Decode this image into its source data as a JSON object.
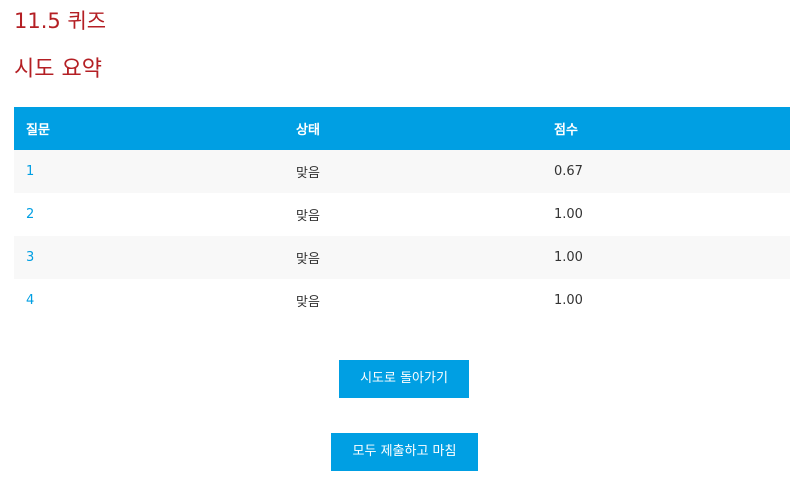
{
  "quiz": {
    "title": "11.5 퀴즈"
  },
  "summary": {
    "title": "시도 요약",
    "headers": {
      "question": "질문",
      "status": "상태",
      "score": "점수"
    },
    "rows": [
      {
        "question": "1",
        "status": "맞음",
        "score": "0.67"
      },
      {
        "question": "2",
        "status": "맞음",
        "score": "1.00"
      },
      {
        "question": "3",
        "status": "맞음",
        "score": "1.00"
      },
      {
        "question": "4",
        "status": "맞음",
        "score": "1.00"
      }
    ]
  },
  "actions": {
    "return_label": "시도로 돌아가기",
    "submit_label": "모두 제출하고 마침"
  },
  "colors": {
    "heading": "#b41f24",
    "accent": "#009fe3",
    "row_alt": "#f8f8f8"
  }
}
